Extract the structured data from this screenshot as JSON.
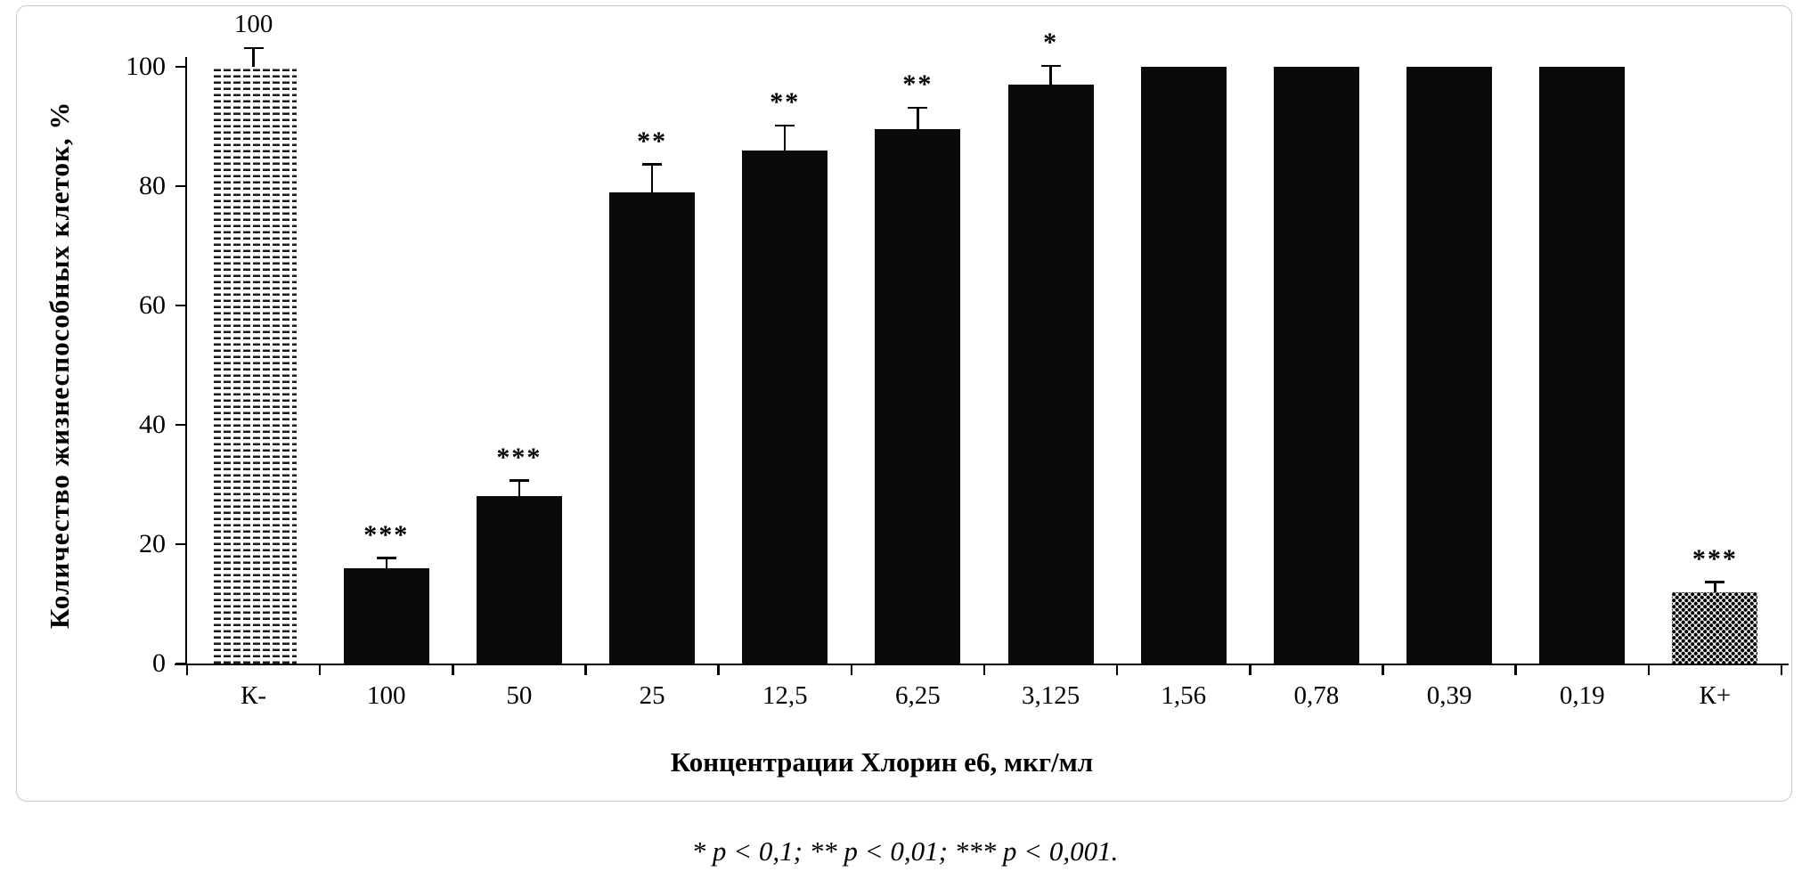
{
  "figure": {
    "footnote": "* p < 0,1; ** p < 0,01; *** p < 0,001."
  },
  "chart_data": {
    "type": "bar",
    "title": "",
    "xlabel": "Концентрации Хлорин е6, мкг/мл",
    "ylabel": "Количество жизнеспособных клеток, %",
    "ylim": [
      0,
      100
    ],
    "yticks": [
      0,
      20,
      40,
      60,
      80,
      100
    ],
    "grid": false,
    "legend": "none",
    "categories": [
      "К-",
      "100",
      "50",
      "25",
      "12,5",
      "6,25",
      "3,125",
      "1,56",
      "0,78",
      "0,39",
      "0,19",
      "К+"
    ],
    "series": [
      {
        "name": "cell-viability-percent",
        "values": [
          100,
          16,
          28,
          79,
          86,
          89.5,
          97,
          100,
          100,
          100,
          100,
          12
        ],
        "errors": [
          3,
          1.5,
          2.5,
          4.5,
          4,
          3.5,
          3,
          0,
          0,
          0,
          0,
          1.5
        ],
        "significance": [
          "",
          "***",
          "***",
          "**",
          "**",
          "**",
          "*",
          "",
          "",
          "",
          "",
          "***"
        ],
        "value_labels": [
          "100",
          "",
          "",
          "",
          "",
          "",
          "",
          "",
          "",
          "",
          "",
          ""
        ],
        "fill": [
          "dash",
          "solid",
          "solid",
          "solid",
          "solid",
          "solid",
          "solid",
          "solid",
          "solid",
          "solid",
          "solid",
          "dots"
        ]
      }
    ],
    "colors": {
      "bar": "#0a0a0a",
      "axis": "#000000",
      "frame_border": "#c8c8c8"
    }
  }
}
